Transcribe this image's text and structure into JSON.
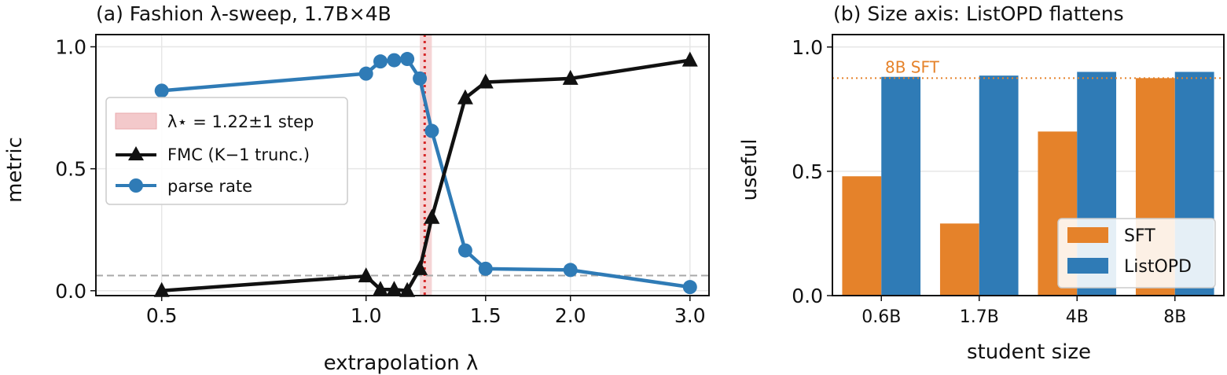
{
  "colors": {
    "fmc": "#111111",
    "parse": "#2f7bb6",
    "sft": "#e5822a",
    "listopd": "#2f7bb6",
    "star": "#d62728",
    "band": "#f3c9cb",
    "threshold": "#a8a8a8",
    "ref": "#e5822a",
    "grid": "#e6e6e6"
  },
  "chart_data": [
    {
      "type": "line",
      "title": "(a) Fashion λ-sweep, 1.7B×4B",
      "xlabel": "extrapolation λ",
      "ylabel": "metric",
      "xlim": [
        0.4,
        3.2
      ],
      "ylim": [
        -0.02,
        1.05
      ],
      "x_scale": "log",
      "xticks": [
        "0.5",
        "1.0",
        "1.5",
        "2.0",
        "3.0"
      ],
      "yticks": [
        "0.0",
        "0.5",
        "1.0"
      ],
      "grid": true,
      "legend_position": "center-left",
      "series": [
        {
          "name": "FMC (K−1 trunc.)",
          "marker": "triangle",
          "x": [
            0.5,
            1.0,
            1.05,
            1.1,
            1.15,
            1.2,
            1.25,
            1.4,
            1.5,
            2.0,
            3.0
          ],
          "y": [
            0.0,
            0.06,
            0.005,
            0.005,
            0.0,
            0.09,
            0.3,
            0.79,
            0.855,
            0.87,
            0.945
          ]
        },
        {
          "name": "parse rate",
          "marker": "circle",
          "x": [
            0.5,
            1.0,
            1.05,
            1.1,
            1.15,
            1.2,
            1.25,
            1.4,
            1.5,
            2.0,
            3.0
          ],
          "y": [
            0.82,
            0.89,
            0.94,
            0.945,
            0.95,
            0.87,
            0.655,
            0.165,
            0.09,
            0.085,
            0.015
          ]
        }
      ],
      "lambda_star": {
        "label": "λ⋆ = 1.22±1 step",
        "value": 1.22,
        "band": [
          1.2,
          1.25
        ]
      },
      "threshold_y": 0.062
    },
    {
      "type": "bar",
      "title": "(b) Size axis: ListOPD flattens",
      "xlabel": "student size",
      "ylabel": "useful",
      "ylim": [
        0.0,
        1.05
      ],
      "yticks": [
        "0.0",
        "0.5",
        "1.0"
      ],
      "categories": [
        "0.6B",
        "1.7B",
        "4B",
        "8B"
      ],
      "grid": true,
      "legend_position": "lower-right",
      "series": [
        {
          "name": "SFT",
          "values": [
            0.48,
            0.29,
            0.66,
            0.875
          ]
        },
        {
          "name": "ListOPD",
          "values": [
            0.88,
            0.885,
            0.9,
            0.9
          ]
        }
      ],
      "reference_line": {
        "label": "8B SFT",
        "value": 0.875
      }
    }
  ]
}
